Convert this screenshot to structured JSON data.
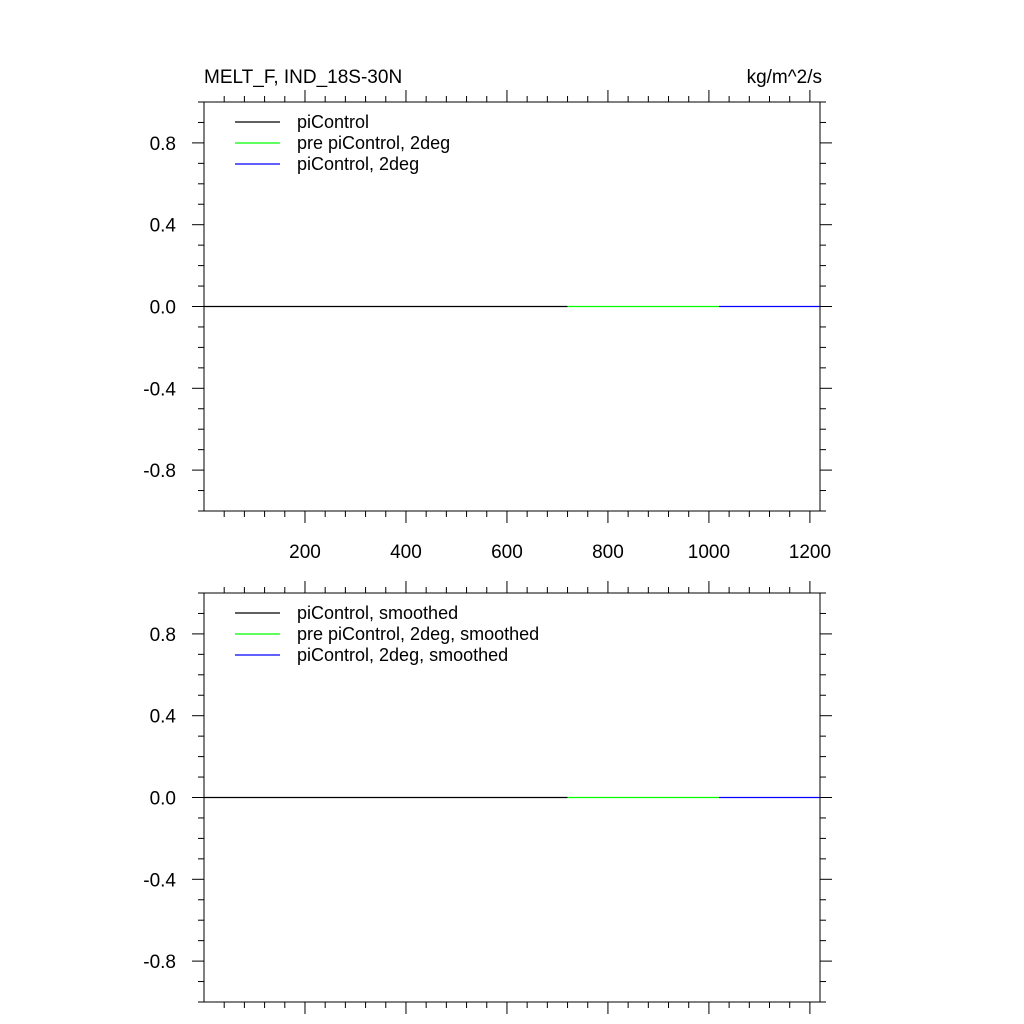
{
  "header": {
    "title": "MELT_F, IND_18S-30N",
    "units": "kg/m^2/s"
  },
  "chart_data": [
    {
      "type": "line",
      "title": "MELT_F, IND_18S-30N",
      "units": "kg/m^2/s",
      "xlabel": "",
      "ylabel": "",
      "xlim": [
        0,
        1220
      ],
      "ylim": [
        -1.0,
        1.0
      ],
      "x_ticks": [
        "200",
        "400",
        "600",
        "800",
        "1000",
        "1200"
      ],
      "y_ticks": [
        "0.8",
        "0.4",
        "0.0",
        "-0.4",
        "-0.8"
      ],
      "legend_position": "top-left",
      "grid": false,
      "series": [
        {
          "name": "piControl",
          "color": "#000000",
          "x": [
            0,
            720
          ],
          "y": [
            0.0,
            0.0
          ]
        },
        {
          "name": "pre piControl, 2deg",
          "color": "#00ff00",
          "x": [
            720,
            1020
          ],
          "y": [
            0.0,
            0.0
          ]
        },
        {
          "name": "piControl, 2deg",
          "color": "#0000ff",
          "x": [
            1020,
            1220
          ],
          "y": [
            0.0,
            0.0
          ]
        }
      ]
    },
    {
      "type": "line",
      "xlabel": "",
      "ylabel": "",
      "xlim": [
        0,
        1220
      ],
      "ylim": [
        -1.0,
        1.0
      ],
      "x_ticks": [],
      "y_ticks": [
        "0.8",
        "0.4",
        "0.0",
        "-0.4",
        "-0.8"
      ],
      "legend_position": "top-left",
      "grid": false,
      "series": [
        {
          "name": "piControl, smoothed",
          "color": "#000000",
          "x": [
            0,
            720
          ],
          "y": [
            0.0,
            0.0
          ]
        },
        {
          "name": "pre piControl, 2deg, smoothed",
          "color": "#00ff00",
          "x": [
            720,
            1020
          ],
          "y": [
            0.0,
            0.0
          ]
        },
        {
          "name": "piControl, 2deg, smoothed",
          "color": "#0000ff",
          "x": [
            1020,
            1220
          ],
          "y": [
            0.0,
            0.0
          ]
        }
      ]
    }
  ]
}
